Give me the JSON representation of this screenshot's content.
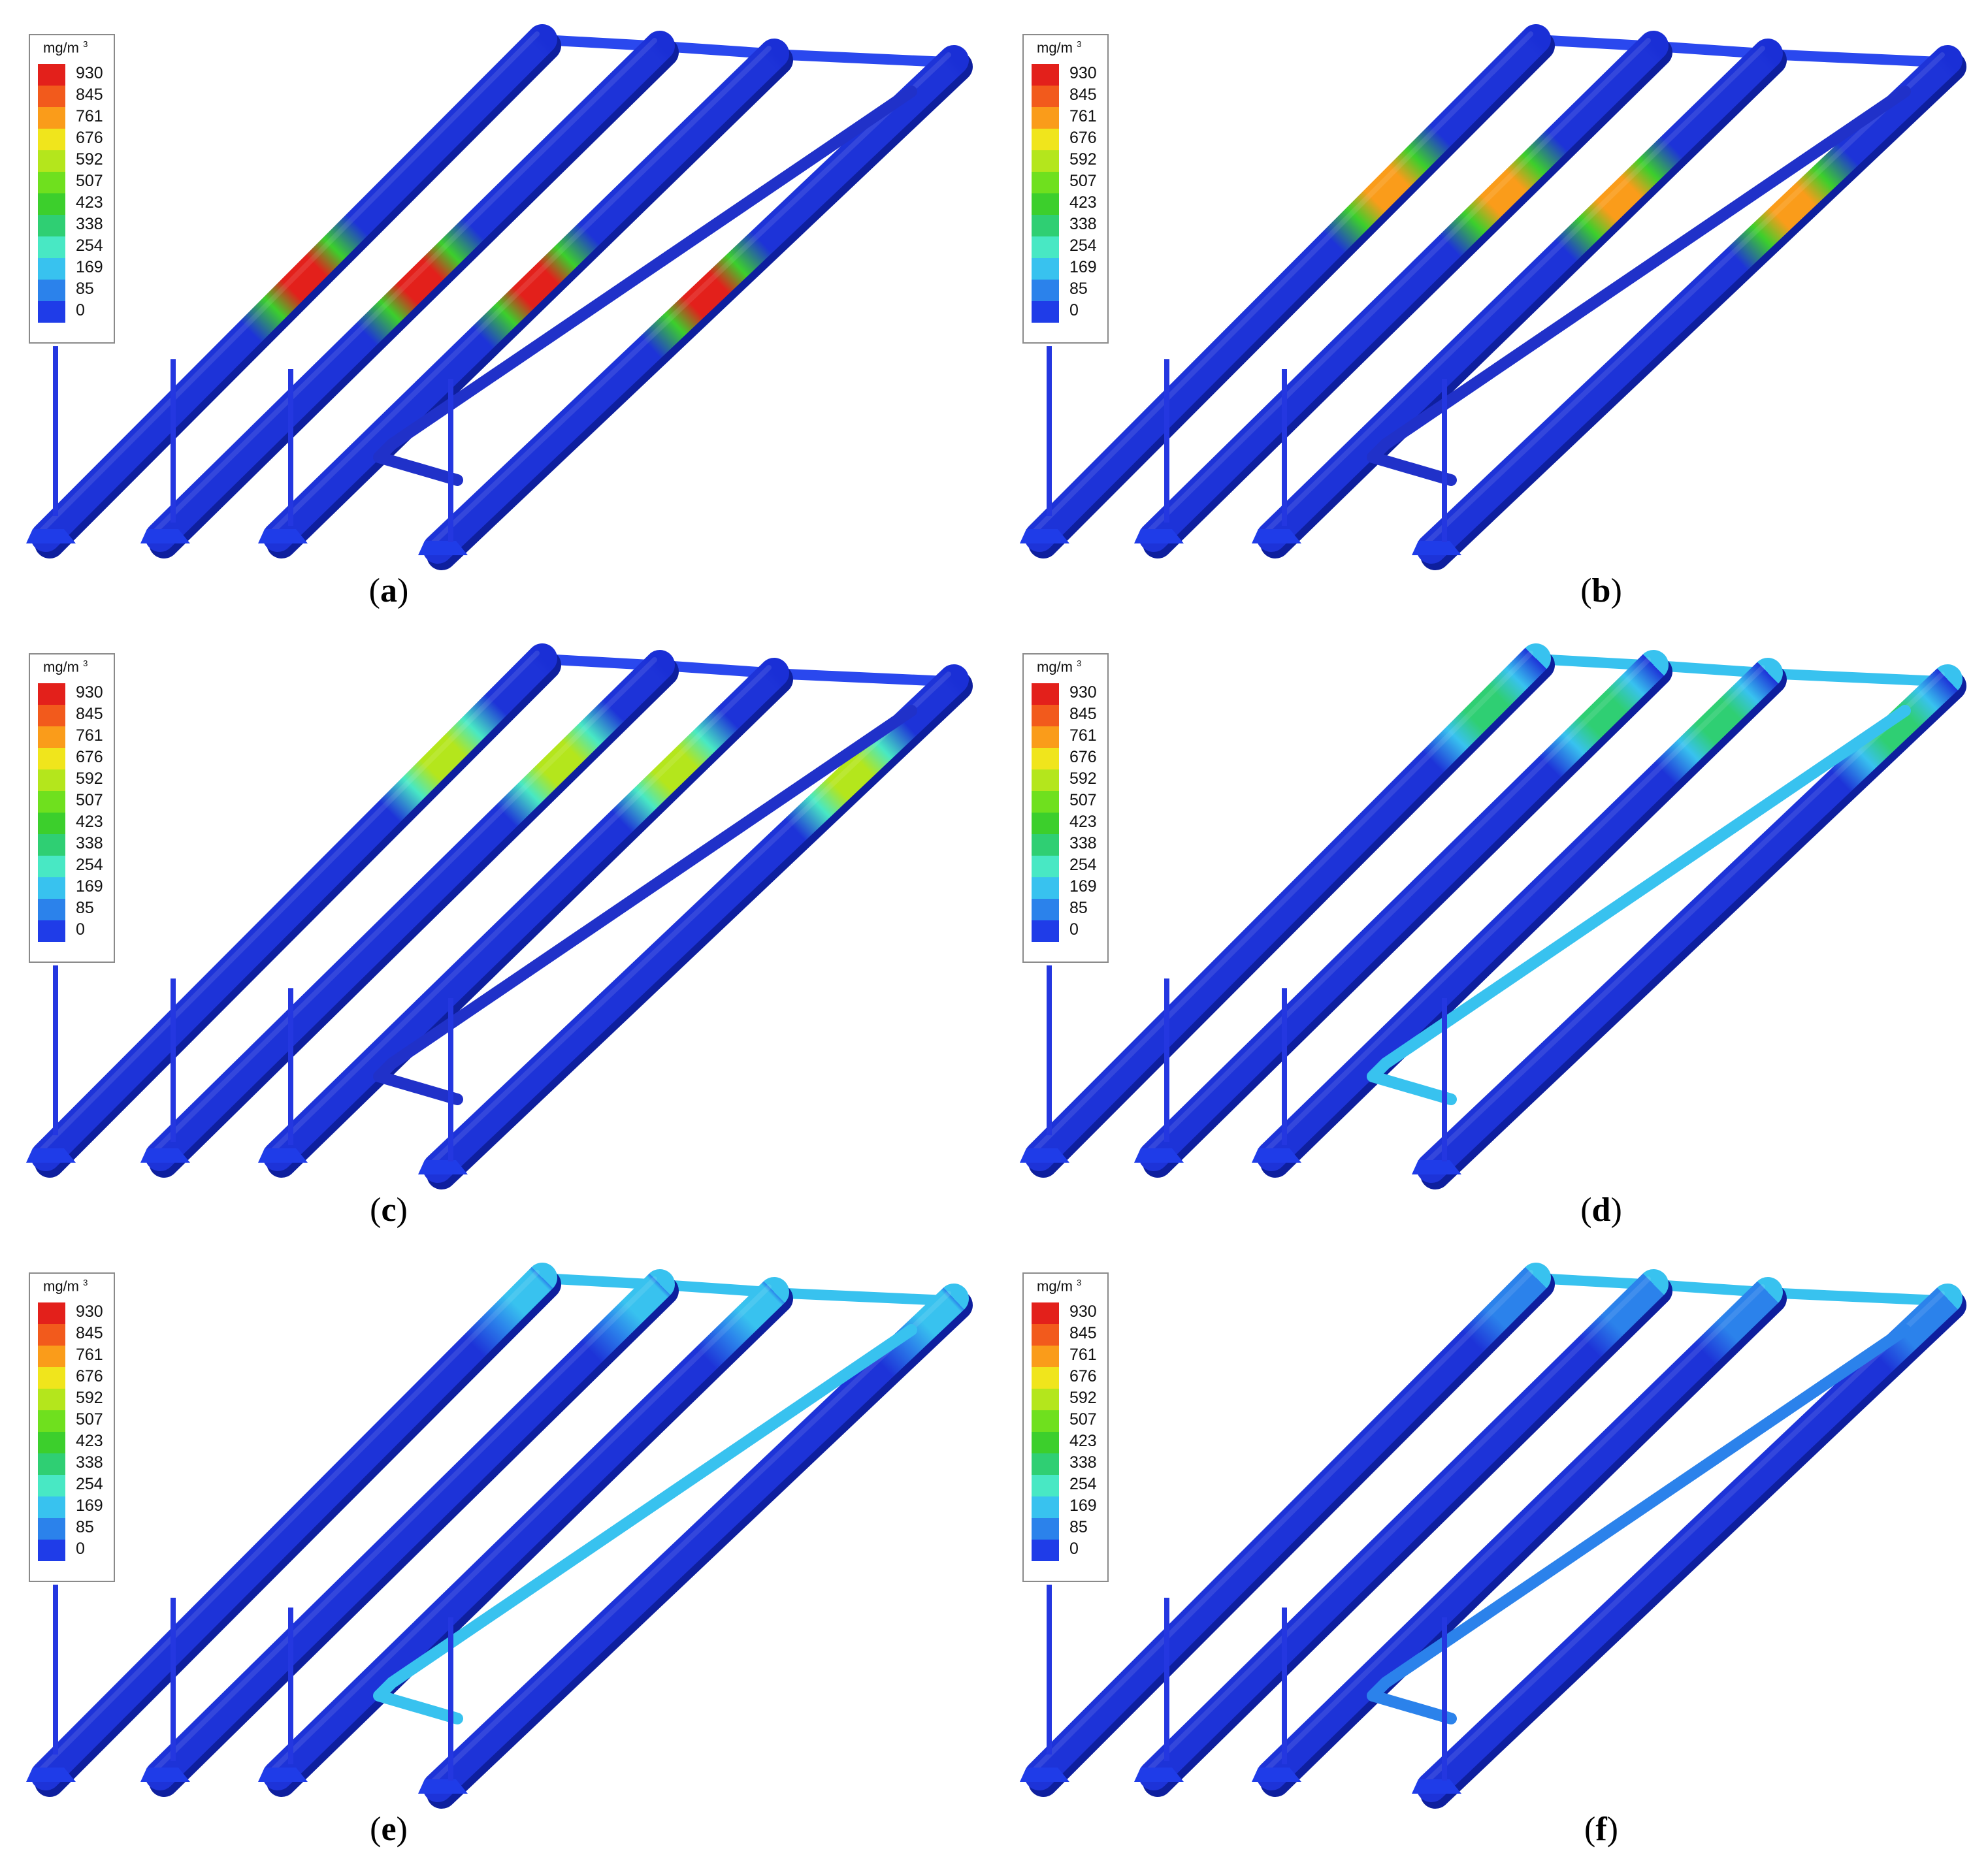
{
  "legend": {
    "unit": "mg/m",
    "unit_exponent": "3",
    "values": [
      "930",
      "845",
      "761",
      "676",
      "592",
      "507",
      "423",
      "338",
      "254",
      "169",
      "85",
      "0"
    ],
    "colors": [
      "#e3201b",
      "#f25a1c",
      "#fa9c1a",
      "#f0e51c",
      "#b4e61c",
      "#6fe01e",
      "#3ccf2c",
      "#2fcf73",
      "#48e8c4",
      "#38c2ef",
      "#2b82eb",
      "#1f3ce8"
    ]
  },
  "colormap_min": 0,
  "colormap_max": 930,
  "panels": [
    {
      "id": "a",
      "label_open": "(",
      "label": "a",
      "label_close": ")",
      "plume_value": 930,
      "plume_position": 0.52,
      "far_end_value": 0
    },
    {
      "id": "b",
      "label_open": "(",
      "label": "b",
      "label_close": ")",
      "plume_value": 800,
      "plume_position": 0.7,
      "far_end_value": 0
    },
    {
      "id": "c",
      "label_open": "(",
      "label": "c",
      "label_close": ")",
      "plume_value": 560,
      "plume_position": 0.8,
      "far_end_value": 0
    },
    {
      "id": "d",
      "label_open": "(",
      "label": "d",
      "label_close": ")",
      "plume_value": 300,
      "plume_position": 0.9,
      "far_end_value": 160
    },
    {
      "id": "e",
      "label_open": "(",
      "label": "e",
      "label_close": ")",
      "plume_value": 140,
      "plume_position": 0.97,
      "far_end_value": 190
    },
    {
      "id": "f",
      "label_open": "(",
      "label": "f",
      "label_close": ")",
      "plume_value": 100,
      "plume_position": 0.98,
      "far_end_value": 140
    }
  ]
}
